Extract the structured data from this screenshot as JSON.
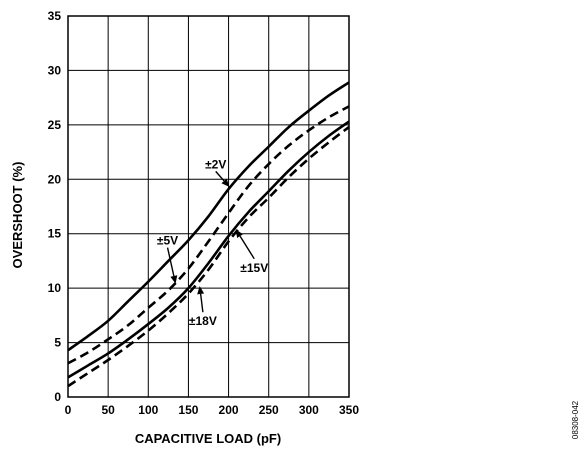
{
  "chart_data": {
    "type": "line",
    "title": "",
    "xlabel": "CAPACITIVE LOAD (pF)",
    "ylabel": "OVERSHOOT (%)",
    "xlim": [
      0,
      350
    ],
    "ylim": [
      0,
      35
    ],
    "xticks": [
      0,
      50,
      100,
      150,
      200,
      250,
      300,
      350
    ],
    "yticks": [
      0,
      5,
      10,
      15,
      20,
      25,
      30,
      35
    ],
    "grid": true,
    "series": [
      {
        "name": "±2V",
        "style": "solid",
        "x": [
          0,
          25,
          50,
          75,
          100,
          125,
          150,
          175,
          200,
          225,
          250,
          275,
          300,
          325,
          350
        ],
        "y": [
          4.3,
          5.6,
          7.0,
          8.8,
          10.6,
          12.5,
          14.4,
          16.6,
          19.1,
          21.2,
          23.0,
          24.8,
          26.3,
          27.7,
          28.9
        ]
      },
      {
        "name": "±5V",
        "style": "dashed",
        "x": [
          0,
          25,
          50,
          75,
          100,
          125,
          150,
          175,
          200,
          225,
          250,
          275,
          300,
          325,
          350
        ],
        "y": [
          3.1,
          4.1,
          5.3,
          6.6,
          8.2,
          9.8,
          11.8,
          14.3,
          16.9,
          19.4,
          21.4,
          23.1,
          24.5,
          25.7,
          26.7
        ]
      },
      {
        "name": "±15V",
        "style": "solid",
        "x": [
          0,
          25,
          50,
          75,
          100,
          125,
          150,
          175,
          200,
          225,
          250,
          275,
          300,
          325,
          350
        ],
        "y": [
          1.8,
          2.9,
          4.0,
          5.3,
          6.7,
          8.2,
          10.0,
          12.3,
          14.8,
          17.0,
          18.9,
          20.8,
          22.5,
          24.0,
          25.3
        ]
      },
      {
        "name": "±18V",
        "style": "dashed",
        "x": [
          0,
          25,
          50,
          75,
          100,
          125,
          150,
          175,
          200,
          225,
          250,
          275,
          300,
          325,
          350
        ],
        "y": [
          1.0,
          2.2,
          3.4,
          4.7,
          6.1,
          7.7,
          9.5,
          11.7,
          14.3,
          16.5,
          18.3,
          20.2,
          21.9,
          23.4,
          24.8
        ]
      }
    ],
    "annotations": [
      {
        "text": "±2V",
        "x": 184,
        "y": 21.0,
        "arrow_to": [
          201,
          19.3
        ]
      },
      {
        "text": "±5V",
        "x": 124,
        "y": 14.0,
        "arrow_to": [
          134,
          10.4
        ]
      },
      {
        "text": "±15V",
        "x": 232,
        "y": 11.5,
        "arrow_to": [
          209,
          15.4
        ]
      },
      {
        "text": "±18V",
        "x": 168,
        "y": 6.6,
        "arrow_to": [
          164,
          10.2
        ]
      }
    ]
  },
  "figure_code": "08308-042"
}
